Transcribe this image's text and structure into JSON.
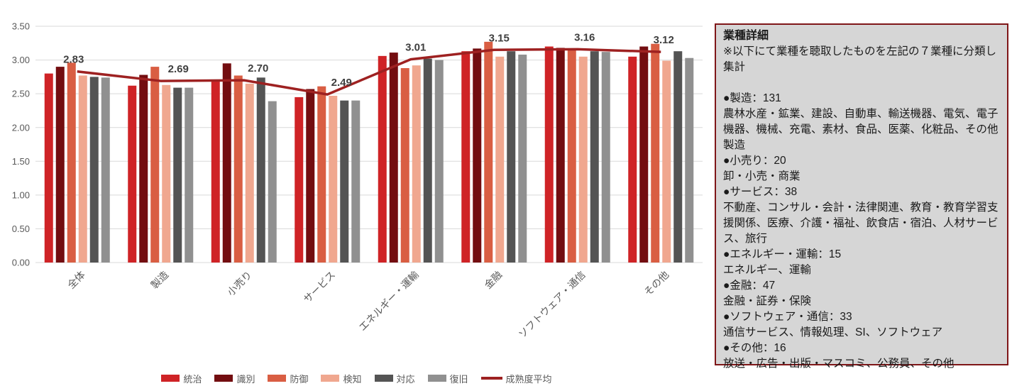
{
  "chart_data": {
    "type": "bar",
    "categories": [
      "全体",
      "製造",
      "小売り",
      "サービス",
      "エネルギー・運輸",
      "金融",
      "ソフトウェア・通信",
      "その他"
    ],
    "series": [
      {
        "name": "統治",
        "color": "#cf2326",
        "values": [
          2.8,
          2.62,
          2.68,
          2.45,
          3.06,
          3.13,
          3.2,
          3.05
        ]
      },
      {
        "name": "識別",
        "color": "#730d10",
        "values": [
          2.9,
          2.78,
          2.95,
          2.57,
          3.11,
          3.17,
          3.18,
          3.2
        ]
      },
      {
        "name": "防御",
        "color": "#d95e43",
        "values": [
          2.96,
          2.9,
          2.77,
          2.61,
          2.88,
          3.27,
          3.15,
          3.24
        ]
      },
      {
        "name": "検知",
        "color": "#f0a78f",
        "values": [
          2.77,
          2.63,
          2.65,
          2.47,
          2.92,
          3.05,
          3.05,
          2.99
        ]
      },
      {
        "name": "対応",
        "color": "#545454",
        "values": [
          2.75,
          2.59,
          2.74,
          2.4,
          3.02,
          3.13,
          3.13,
          3.13
        ]
      },
      {
        "name": "復旧",
        "color": "#909090",
        "values": [
          2.74,
          2.59,
          2.39,
          2.4,
          3.0,
          3.08,
          3.12,
          3.03
        ]
      }
    ],
    "line_series": {
      "name": "成熟度平均",
      "color": "#9e2121",
      "values": [
        2.83,
        2.69,
        2.7,
        2.49,
        3.01,
        3.15,
        3.16,
        3.12
      ]
    },
    "line_labels": [
      "2.83",
      "2.69",
      "2.70",
      "2.49",
      "3.01",
      "3.15",
      "3.16",
      "3.12"
    ],
    "title": "",
    "xlabel": "",
    "ylabel": "",
    "ylim": [
      0,
      3.5
    ],
    "ytick_labels": [
      "0.00",
      "0.50",
      "1.00",
      "1.50",
      "2.00",
      "2.50",
      "3.00",
      "3.50"
    ],
    "grid": true,
    "legend_position": "bottom"
  },
  "panel": {
    "title": "業種詳細",
    "note": "※以下にて業種を聴取したものを左記の７業種に分類し集計",
    "entries": [
      {
        "heading": "●製造：131",
        "detail": "農林水産・鉱業、建設、自動車、輸送機器、電気、電子機器、機械、充電、素材、食品、医薬、化粧品、その他製造"
      },
      {
        "heading": "●小売り：20",
        "detail": "卸・小売・商業"
      },
      {
        "heading": "●サービス：38",
        "detail": "不動産、コンサル・会計・法律関連、教育・教育学習支援関係、医療、介護・福祉、飲食店・宿泊、人材サービス、旅行"
      },
      {
        "heading": "●エネルギー・運輸：15",
        "detail": "エネルギー、運輸"
      },
      {
        "heading": "●金融：47",
        "detail": "金融・証券・保険"
      },
      {
        "heading": "●ソフトウェア・通信：33",
        "detail": "通信サービス、情報処理、SI、ソフトウェア"
      },
      {
        "heading": "●その他：16",
        "detail": "放送・広告・出版・マスコミ、公務員、その他"
      }
    ]
  }
}
